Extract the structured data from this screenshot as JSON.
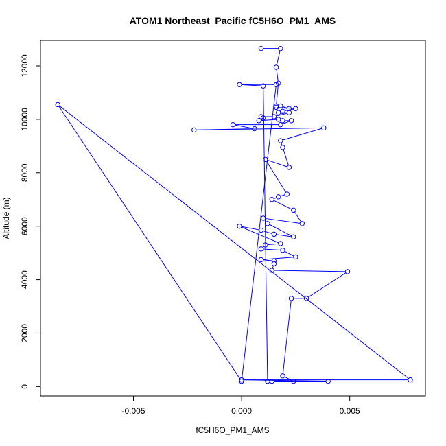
{
  "chart_data": {
    "type": "scatter",
    "title": "ATOM1 Northeast_Pacific fC5H6O_PM1_AMS",
    "xlabel": "fC5H6O_PM1_AMS",
    "ylabel": "Altitude (m)",
    "xlim": [
      -0.0093,
      0.0085
    ],
    "ylim": [
      -350,
      12950
    ],
    "x_ticks": [
      -0.005,
      0.0,
      0.005
    ],
    "x_tick_labels": [
      "-0.005",
      "0.000",
      "0.005"
    ],
    "y_ticks": [
      0,
      2000,
      4000,
      6000,
      8000,
      10000,
      12000
    ],
    "y_tick_labels": [
      "0",
      "2000",
      "4000",
      "6000",
      "8000",
      "10000",
      "12000"
    ],
    "grid": false,
    "connected": true,
    "color": "#0000ff",
    "series": [
      {
        "points": [
          [
            0.0009,
            12650
          ],
          [
            0.0018,
            12650
          ],
          [
            0.0016,
            11950
          ],
          [
            0.0017,
            11350
          ],
          [
            0.0016,
            10500
          ],
          [
            0.0018,
            10500
          ],
          [
            0.0022,
            10400
          ],
          [
            0.0016,
            10450
          ],
          [
            0.0025,
            10400
          ],
          [
            0.0019,
            10300
          ],
          [
            0.0017,
            10250
          ],
          [
            0.0022,
            10250
          ],
          [
            0.0015,
            10100
          ],
          [
            0.0009,
            10100
          ],
          [
            0.001,
            10050
          ],
          [
            0.0008,
            9950
          ],
          [
            0.0017,
            10000
          ],
          [
            0.0019,
            9950
          ],
          [
            0.0023,
            9950
          ],
          [
            0.0018,
            9800
          ],
          [
            -0.0004,
            9800
          ],
          [
            0.0006,
            9650
          ],
          [
            -0.0022,
            9600
          ],
          [
            0.0038,
            9680
          ],
          [
            0.0018,
            9200
          ],
          [
            0.0019,
            8950
          ],
          [
            0.0022,
            8200
          ],
          [
            0.0011,
            8500
          ],
          [
            0.0021,
            7200
          ],
          [
            0.0017,
            7100
          ],
          [
            0.0014,
            7000
          ],
          [
            0.0024,
            6600
          ],
          [
            0.0028,
            6100
          ],
          [
            0.001,
            6300
          ],
          [
            0.0012,
            6100
          ],
          [
            0.0024,
            5600
          ],
          [
            0.0015,
            5700
          ],
          [
            0.0009,
            5850
          ],
          [
            -0.0001,
            6000
          ],
          [
            0.0018,
            5350
          ],
          [
            0.0011,
            5300
          ],
          [
            0.0009,
            5150
          ],
          [
            0.0019,
            5100
          ],
          [
            0.0025,
            4850
          ],
          [
            0.0009,
            4750
          ],
          [
            0.0015,
            4700
          ],
          [
            0.0015,
            4600
          ],
          [
            0.0014,
            4350
          ],
          [
            0.0049,
            4300
          ],
          [
            0.003,
            3300
          ],
          [
            0.0023,
            3300
          ],
          [
            0.0019,
            400
          ],
          [
            0.0024,
            200
          ],
          [
            0.0014,
            200
          ],
          [
            0.004,
            200
          ],
          [
            0.0,
            250
          ],
          [
            0.0078,
            250
          ],
          [
            -0.0085,
            10550
          ],
          [
            0.0,
            200
          ],
          [
            0.0016,
            11300
          ],
          [
            -0.0001,
            11300
          ],
          [
            0.001,
            11250
          ],
          [
            0.0012,
            200
          ]
        ]
      }
    ]
  }
}
